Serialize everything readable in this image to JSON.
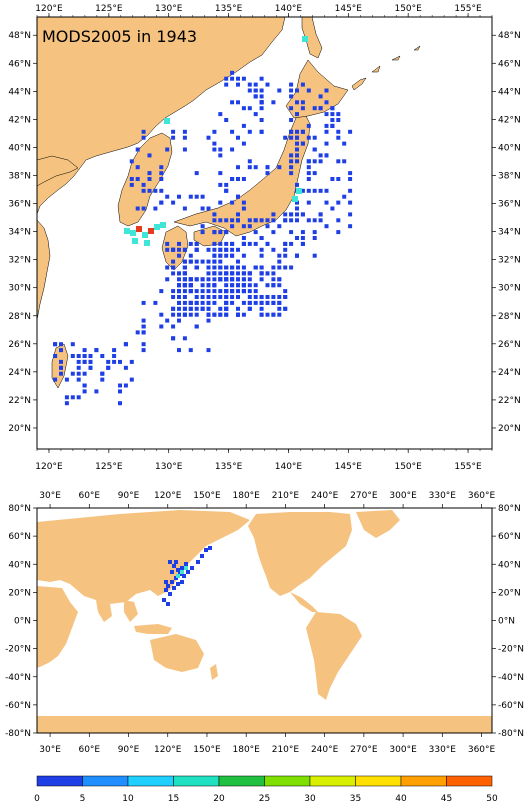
{
  "top_map": {
    "title": "MODS2005 in 1943",
    "lon_labels": [
      "120°E",
      "125°E",
      "130°E",
      "135°E",
      "140°E",
      "145°E",
      "150°E",
      "155°E"
    ],
    "lat_labels": [
      "20°N",
      "22°N",
      "24°N",
      "26°N",
      "28°N",
      "30°N",
      "32°N",
      "34°N",
      "36°N",
      "38°N",
      "40°N",
      "42°N",
      "44°N",
      "46°N",
      "48°N"
    ],
    "lon_range": [
      119,
      157
    ],
    "lat_range": [
      18.5,
      49.3
    ]
  },
  "bottom_map": {
    "lon_labels": [
      "30°E",
      "60°E",
      "90°E",
      "120°E",
      "150°E",
      "180°E",
      "210°E",
      "240°E",
      "270°E",
      "300°E",
      "330°E",
      "360°E"
    ],
    "lat_labels": [
      "-80°N",
      "-60°N",
      "-40°N",
      "-20°N",
      "0°N",
      "20°N",
      "40°N",
      "60°N",
      "80°N"
    ],
    "lon_range": [
      20,
      368
    ],
    "lat_range": [
      -80,
      80
    ]
  },
  "colorbar": {
    "tick_labels": [
      "0",
      "5",
      "10",
      "15",
      "20",
      "25",
      "30",
      "35",
      "40",
      "45",
      "50"
    ],
    "colors": [
      "#1f3fe6",
      "#1f8fff",
      "#1fd0ff",
      "#1fe0c0",
      "#20c040",
      "#7fe000",
      "#d8f000",
      "#ffe000",
      "#ffa000",
      "#ff6000"
    ]
  },
  "colors": {
    "land": "#f5c27f",
    "low_count": "#1f3fe6",
    "mid_count": "#3fe6d8",
    "high_count": "#e63a1f"
  }
}
